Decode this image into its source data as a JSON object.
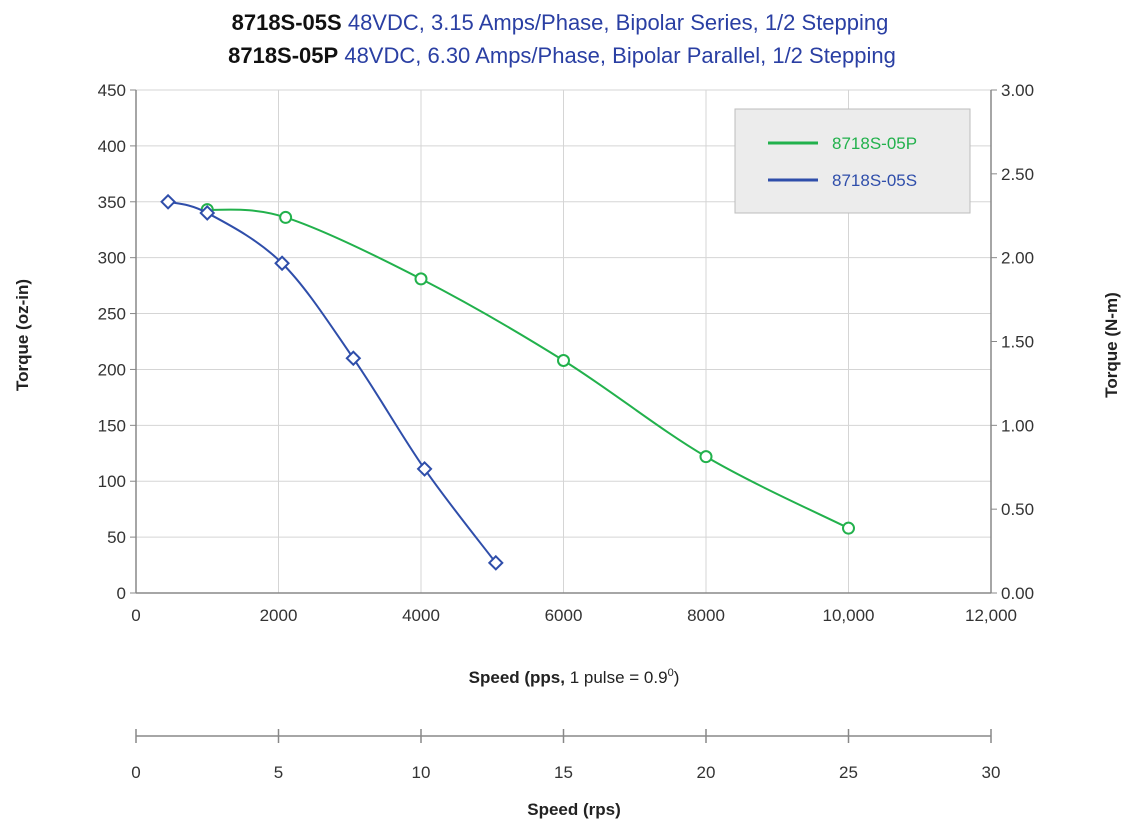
{
  "title": {
    "line1_model": "8718S-05S",
    "line1_desc": "48VDC, 3.15 Amps/Phase, Bipolar Series, 1/2 Stepping",
    "line2_model": "8718S-05P",
    "line2_desc": "48VDC, 6.30 Amps/Phase, Bipolar Parallel, 1/2 Stepping"
  },
  "axes": {
    "left_label": "Torque (oz-in)",
    "right_label": "Torque (N-m)",
    "x_label_bold": "Speed (pps,",
    "x_label_rest": " 1 pulse = 0.9",
    "x_label_sup": "0",
    "x_label_close": ")",
    "x2_label": "Speed (rps)"
  },
  "colors": {
    "series_05P": "#22b14c",
    "series_05S": "#2f4eaa",
    "grid": "#d5d5d5",
    "axis": "#888888",
    "legend_bg": "#ececec"
  },
  "chart_data": {
    "type": "line",
    "xlim": [
      0,
      12000
    ],
    "ylim": [
      0,
      450
    ],
    "y2lim": [
      0,
      3.0
    ],
    "x2lim": [
      0,
      30
    ],
    "x_ticks": [
      "0",
      "2000",
      "4000",
      "6000",
      "8000",
      "10,000",
      "12,000"
    ],
    "y_ticks": [
      "0",
      "50",
      "100",
      "150",
      "200",
      "250",
      "300",
      "350",
      "400",
      "450"
    ],
    "y2_ticks": [
      "0.00",
      "0.50",
      "1.00",
      "1.50",
      "2.00",
      "2.50",
      "3.00"
    ],
    "x2_ticks": [
      "0",
      "5",
      "10",
      "15",
      "20",
      "25",
      "30"
    ],
    "grid": true,
    "legend_position": "top-right",
    "series": [
      {
        "name": "8718S-05P",
        "marker": "circle",
        "x": [
          1000,
          2100,
          4000,
          6000,
          8000,
          10000
        ],
        "y": [
          343,
          336,
          281,
          208,
          122,
          58
        ]
      },
      {
        "name": "8718S-05S",
        "marker": "diamond",
        "x": [
          450,
          1000,
          2050,
          3050,
          4050,
          5050
        ],
        "y": [
          350,
          340,
          295,
          210,
          111,
          27
        ]
      }
    ]
  }
}
